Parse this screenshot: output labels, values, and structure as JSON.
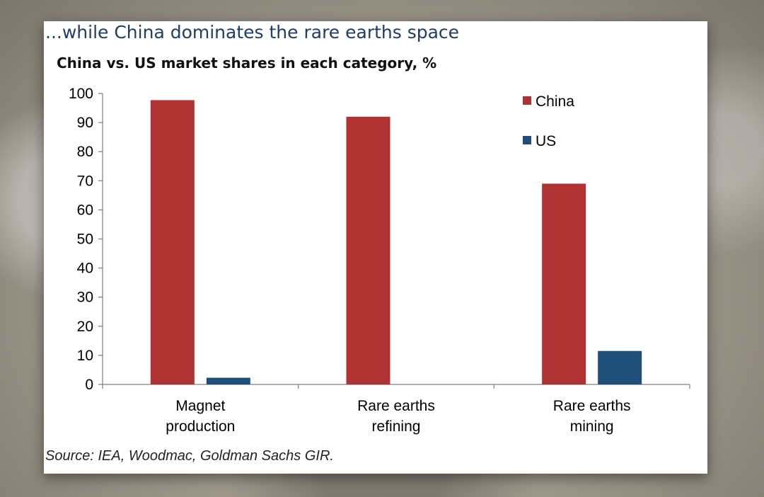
{
  "title": "...while China dominates the rare earths space",
  "subtitle": "China vs. US market shares in each category, %",
  "source": "Source: IEA, Woodmac, Goldman Sachs GIR.",
  "colors": {
    "China": "#b03232",
    "US": "#1f4e79",
    "title": "#1f3d66"
  },
  "chart_data": {
    "type": "bar",
    "title": "...while China dominates the rare earths space",
    "subtitle": "China vs. US market shares in each category, %",
    "categories": [
      [
        "Magnet",
        "production"
      ],
      [
        "Rare earths",
        "refining"
      ],
      [
        "Rare earths",
        "mining"
      ]
    ],
    "series": [
      {
        "name": "China",
        "values": [
          97.7,
          92,
          69
        ]
      },
      {
        "name": "US",
        "values": [
          2.3,
          0,
          11.5
        ]
      }
    ],
    "ylim": [
      0,
      100
    ],
    "yticks": [
      0,
      10,
      20,
      30,
      40,
      50,
      60,
      70,
      80,
      90,
      100
    ],
    "xlabel": "",
    "ylabel": "",
    "grid": false,
    "legend_position": "top-right"
  }
}
